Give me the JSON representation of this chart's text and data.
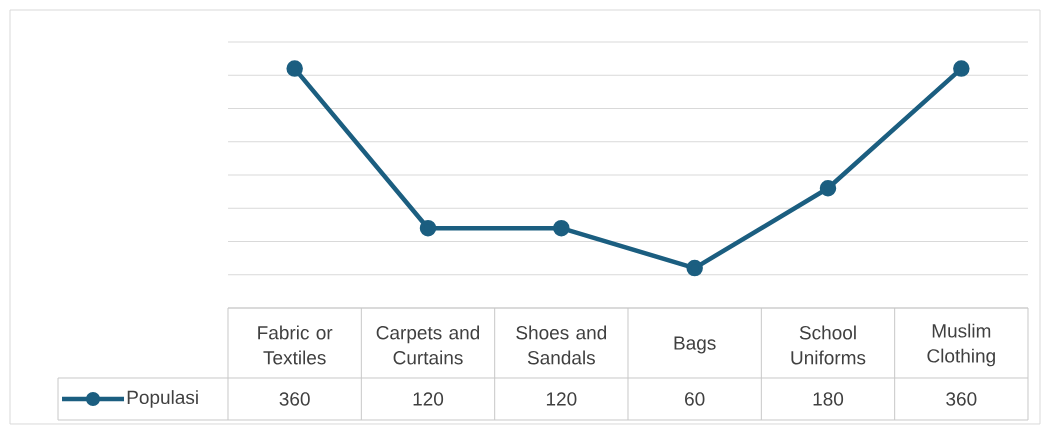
{
  "chart_data": {
    "type": "line",
    "categories": [
      "Fabric or Textiles",
      "Carpets and Curtains",
      "Shoes and Sandals",
      "Bags",
      "School Uniforms",
      "Muslim Clothing"
    ],
    "series": [
      {
        "name": "Populasi",
        "color": "#1b5e80",
        "values": [
          360,
          120,
          120,
          60,
          180,
          360
        ]
      }
    ],
    "ylim": [
      0,
      400
    ],
    "yticks": [
      {
        "value": 0,
        "label": null
      },
      {
        "value": 50,
        "label": null
      },
      {
        "value": 100,
        "label": null
      },
      {
        "value": 150,
        "label": null
      },
      {
        "value": 200,
        "label": null
      },
      {
        "value": 250,
        "label": null
      },
      {
        "value": 300,
        "label": null
      },
      {
        "value": 350,
        "label": null
      },
      {
        "value": 400,
        "label": null
      }
    ],
    "grid": "y",
    "marker": "circle",
    "line_style": "solid",
    "legend": "bottom",
    "data_labels": true
  }
}
